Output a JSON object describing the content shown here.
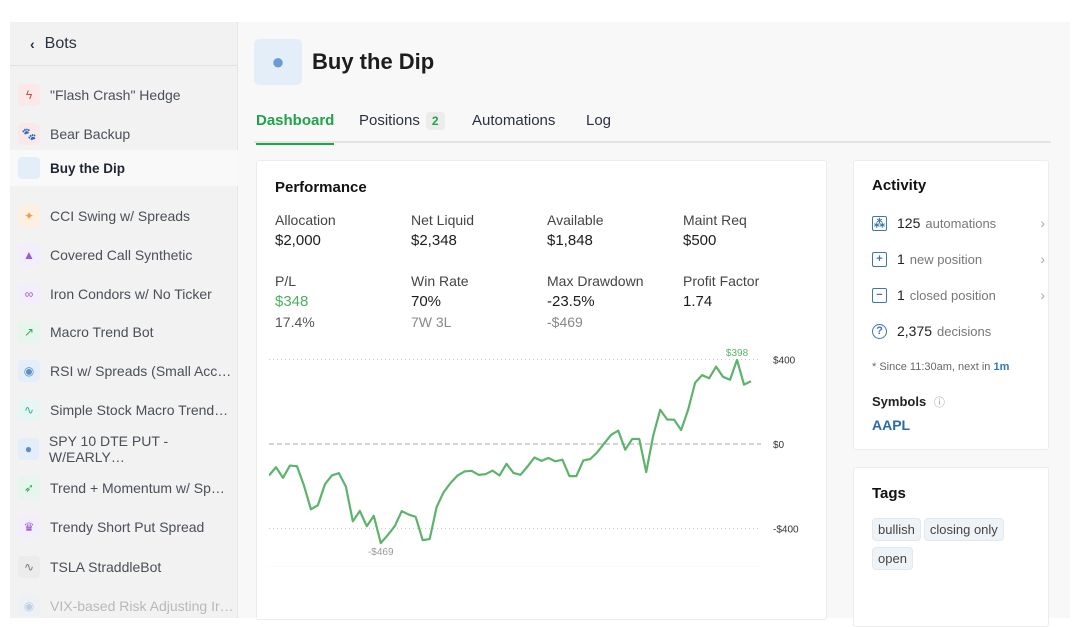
{
  "sidebar": {
    "back_label": "Bots",
    "items": [
      {
        "label": "\"Flash Crash\" Hedge",
        "icon": "lightning-icon",
        "glyph": "ϟ",
        "bg": "#fbe9e9",
        "fg": "#c84b4b"
      },
      {
        "label": "Bear Backup",
        "icon": "paw-icon",
        "glyph": "🐾",
        "bg": "#fbe9e9",
        "fg": "#c84b4b"
      },
      {
        "label": "Buy the Dip",
        "icon": "apple-icon",
        "glyph": "",
        "bg": "#e4eef8",
        "fg": "#6a9bd2"
      },
      {
        "label": "CCI Swing w/ Spreads",
        "icon": "raygun-icon",
        "glyph": "✦",
        "bg": "#fdf0e2",
        "fg": "#f0a050"
      },
      {
        "label": "Covered Call Synthetic",
        "icon": "wizard-hat-icon",
        "glyph": "▲",
        "bg": "#f3eefb",
        "fg": "#9a5bd0"
      },
      {
        "label": "Iron Condors w/ No Ticker",
        "icon": "infinity-icon",
        "glyph": "∞",
        "bg": "#f3eefb",
        "fg": "#9a5bd0"
      },
      {
        "label": "Macro Trend Bot",
        "icon": "chart-line-icon",
        "glyph": "↗",
        "bg": "#e6f6ec",
        "fg": "#2fa85a"
      },
      {
        "label": "RSI w/ Spreads (Small Acc…",
        "icon": "robot-icon",
        "glyph": "◉",
        "bg": "#e4eef8",
        "fg": "#5b8fc8"
      },
      {
        "label": "Simple Stock Macro Trend…",
        "icon": "pulse-icon",
        "glyph": "∿",
        "bg": "#e6f6f4",
        "fg": "#3aa99a"
      },
      {
        "label": "SPY 10 DTE PUT - W/EARLY…",
        "icon": "stopwatch-icon",
        "glyph": "●",
        "bg": "#e4eef8",
        "fg": "#5b8fc8"
      },
      {
        "label": "Trend + Momentum w/ Sp…",
        "icon": "rocket-icon",
        "glyph": "➶",
        "bg": "#e6f6ec",
        "fg": "#2fa85a"
      },
      {
        "label": "Trendy Short Put Spread",
        "icon": "crown-icon",
        "glyph": "♛",
        "bg": "#f3eefb",
        "fg": "#9a5bd0"
      },
      {
        "label": "TSLA StraddleBot",
        "icon": "pulse-icon",
        "glyph": "∿",
        "bg": "#ececec",
        "fg": "#777"
      },
      {
        "label": "VIX-based Risk Adjusting Ir…",
        "icon": "robot-icon",
        "glyph": "◉",
        "bg": "#e4eef8",
        "fg": "#5b8fc8"
      }
    ]
  },
  "header": {
    "title": "Buy the Dip"
  },
  "tabs": [
    {
      "label": "Dashboard"
    },
    {
      "label": "Positions",
      "badge": "2"
    },
    {
      "label": "Automations"
    },
    {
      "label": "Log"
    }
  ],
  "performance": {
    "title": "Performance",
    "stats": [
      {
        "label": "Allocation",
        "value": "$2,000"
      },
      {
        "label": "Net Liquid",
        "value": "$2,348"
      },
      {
        "label": "Available",
        "value": "$1,848"
      },
      {
        "label": "Maint Req",
        "value": "$500"
      },
      {
        "label": "P/L",
        "value": "$348",
        "sub": "17.4%"
      },
      {
        "label": "Win Rate",
        "value": "70%",
        "sub": "7W 3L"
      },
      {
        "label": "Max Drawdown",
        "value": "-23.5%",
        "sub": "-$469"
      },
      {
        "label": "Profit Factor",
        "value": "1.74"
      }
    ]
  },
  "chart_data": {
    "type": "line",
    "ylim": [
      -469,
      398
    ],
    "yticks": [
      "$400",
      "$0",
      "-$400"
    ],
    "ytick_values": [
      400,
      0,
      -400
    ],
    "max_label": "$398",
    "min_label": "-$469",
    "color": "#5cb36b",
    "values": [
      -149,
      -110,
      -160,
      -102,
      -105,
      -196,
      -309,
      -290,
      -191,
      -149,
      -138,
      -201,
      -366,
      -317,
      -389,
      -340,
      -469,
      -431,
      -389,
      -318,
      -334,
      -345,
      -455,
      -450,
      -298,
      -228,
      -184,
      -149,
      -130,
      -127,
      -146,
      -143,
      -126,
      -149,
      -94,
      -137,
      -146,
      -107,
      -64,
      -80,
      -66,
      -82,
      -74,
      -152,
      -152,
      -78,
      -71,
      -39,
      3,
      44,
      63,
      -27,
      24,
      24,
      -133,
      39,
      162,
      116,
      115,
      66,
      162,
      290,
      326,
      311,
      366,
      318,
      304,
      398,
      281,
      297
    ]
  },
  "activity": {
    "title": "Activity",
    "rows": [
      {
        "n": "125",
        "t": "automations",
        "icon": "automation-icon",
        "glyph": "⁂"
      },
      {
        "n": "1",
        "t": "new position",
        "icon": "plus-square-icon",
        "glyph": "+"
      },
      {
        "n": "1",
        "t": "closed position",
        "icon": "minus-square-icon",
        "glyph": "−"
      },
      {
        "n": "2,375",
        "t": "decisions",
        "icon": "question-circle-icon",
        "glyph": "?"
      }
    ],
    "note": "* Since 11:30am, next in ",
    "note_link": "1m",
    "symbols_title": "Symbols",
    "symbol": "AAPL"
  },
  "tags": {
    "title": "Tags",
    "items": [
      "bullish",
      "closing only",
      "open"
    ]
  }
}
